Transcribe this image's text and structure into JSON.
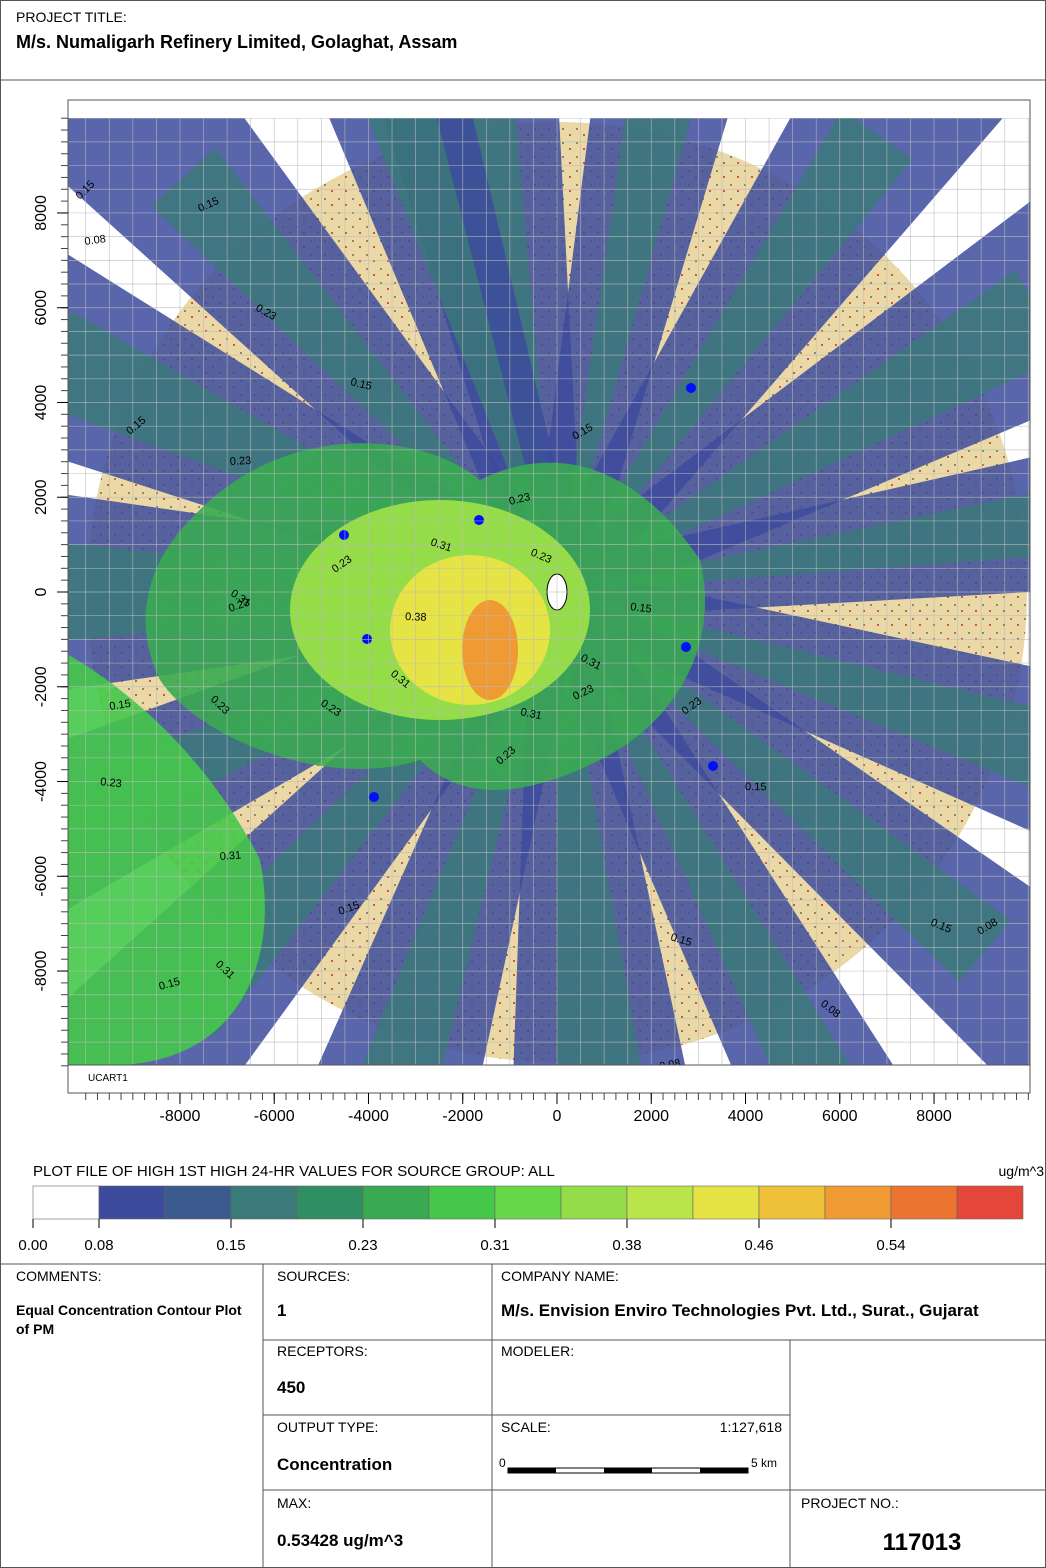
{
  "header": {
    "label": "PROJECT TITLE:",
    "title": "M/s. Numaligarh Refinery Limited, Golaghat, Assam"
  },
  "map": {
    "xticks": [
      -8000,
      -6000,
      -4000,
      -2000,
      0,
      2000,
      4000,
      6000,
      8000
    ],
    "yticks": [
      8000,
      6000,
      4000,
      2000,
      0,
      -2000,
      -4000,
      -6000,
      -8000
    ],
    "grid_label": "UCART1",
    "contour_labels": [
      "0.15",
      "0.08",
      "0.23",
      "0.15",
      "0.15",
      "0.15",
      "0.23",
      "0.31",
      "0.23",
      "0.31",
      "0.23",
      "0.38",
      "0.31",
      "0.23",
      "0.23",
      "0.15",
      "0.15",
      "0.23",
      "0.15",
      "0.31",
      "0.23",
      "0.31",
      "0.23",
      "0.31",
      "0.23",
      "0.15",
      "0.15",
      "0.23",
      "0.15",
      "0.08",
      "0.15",
      "0.15",
      "0.08",
      "0.23",
      "0.31",
      "0.08"
    ]
  },
  "legend": {
    "title": "PLOT FILE OF  HIGH 1ST  HIGH 24-HR VALUES FOR SOURCE GROUP: ALL",
    "unit": "ug/m^3",
    "labels": [
      "0.00",
      "0.08",
      "0.15",
      "0.23",
      "0.31",
      "0.38",
      "0.46",
      "0.54"
    ],
    "colors": [
      "#ffffff",
      "#3c4b9c",
      "#3b5b8e",
      "#3a7a78",
      "#2f8f62",
      "#3aaa52",
      "#45c84a",
      "#66d84a",
      "#95dd48",
      "#b9e44a",
      "#e6e445",
      "#f0c23a",
      "#ef9a33",
      "#ec7431",
      "#e5463a"
    ]
  },
  "info": {
    "comments_label": "COMMENTS:",
    "comments": "Equal Concentration Contour Plot of PM",
    "sources_label": "SOURCES:",
    "sources": 1,
    "company_label": "COMPANY NAME:",
    "company": "M/s. Envision Enviro Technologies Pvt. Ltd., Surat., Gujarat",
    "receptors_label": "RECEPTORS:",
    "receptors": 450,
    "modeler_label": "MODELER:",
    "output_label": "OUTPUT TYPE:",
    "output": "Concentration",
    "scale_label": "SCALE:",
    "scale": "1:127,618",
    "scale_start": "0",
    "scale_end": "5 km",
    "max_label": "MAX:",
    "max": "0.53428 ug/m^3",
    "project_no_label": "PROJECT NO.:",
    "project_no": 117013
  }
}
